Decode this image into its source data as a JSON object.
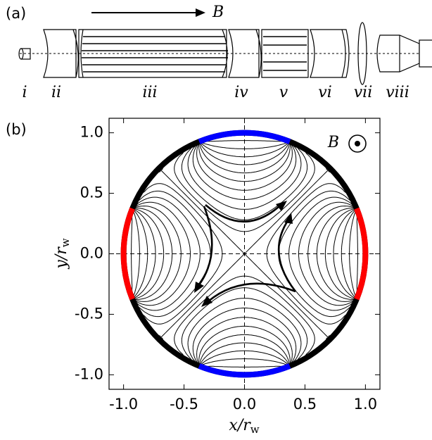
{
  "panel_a": {
    "label": "(a)",
    "field_label": "B",
    "components": [
      "i",
      "ii",
      "iii",
      "iv",
      "v",
      "vi",
      "vii",
      "viii"
    ]
  },
  "chart_data": {
    "type": "contour",
    "panel_label": "(b)",
    "field_label": "B",
    "xlabel": {
      "main": "x/r",
      "sub": "w"
    },
    "ylabel": {
      "main": "y/r",
      "sub": "w"
    },
    "xlim": [
      -1.12,
      1.12
    ],
    "ylim": [
      -1.12,
      1.12
    ],
    "xticks": [
      {
        "value": -1,
        "label": "-1.0"
      },
      {
        "value": -0.5,
        "label": "-0.5"
      },
      {
        "value": 0,
        "label": "0.0"
      },
      {
        "value": 0.5,
        "label": "0.5"
      },
      {
        "value": 1,
        "label": "1.0"
      }
    ],
    "yticks": [
      {
        "value": -1,
        "label": "-1.0"
      },
      {
        "value": -0.5,
        "label": "-0.5"
      },
      {
        "value": 0,
        "label": "0.0"
      },
      {
        "value": 0.5,
        "label": "0.5"
      },
      {
        "value": 1,
        "label": "1.0"
      }
    ],
    "zero_lines": true,
    "wall_radius": 1,
    "wall_color": "#000000",
    "line_color": "#000000",
    "electrodes": [
      {
        "color": "#ff0000",
        "start": -22,
        "end": 22,
        "potential": -1
      },
      {
        "color": "#0000ff",
        "start": 68,
        "end": 112,
        "potential": 1
      },
      {
        "color": "#ff0000",
        "start": 158,
        "end": 202,
        "potential": -1
      },
      {
        "color": "#0000ff",
        "start": 248,
        "end": 292,
        "potential": 1
      }
    ],
    "levels": [
      -0.88,
      -0.75,
      -0.63,
      -0.52,
      -0.42,
      -0.33,
      -0.25,
      -0.18,
      -0.12,
      -0.07,
      -0.03,
      0,
      0.03,
      0.07,
      0.12,
      0.18,
      0.25,
      0.33,
      0.42,
      0.52,
      0.63,
      0.75,
      0.88
    ]
  }
}
